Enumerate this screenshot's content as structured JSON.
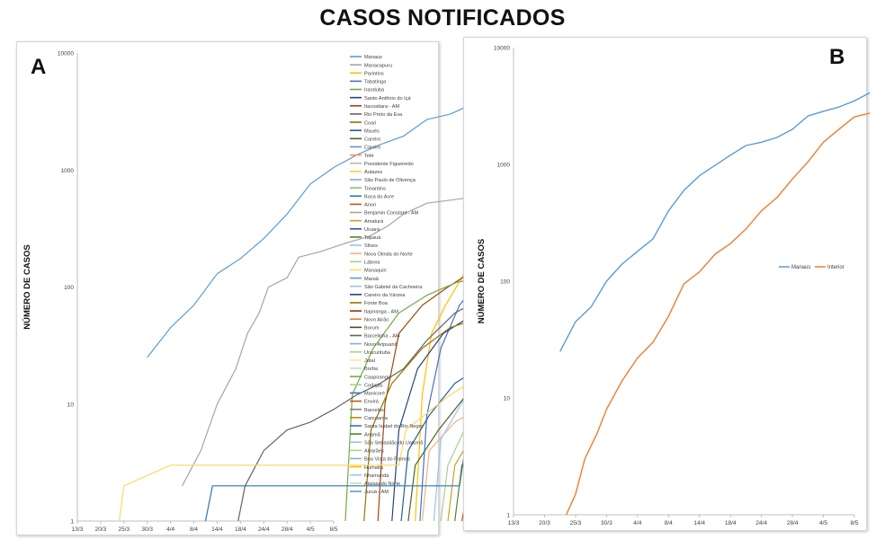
{
  "title": "CASOS NOTIFICADOS",
  "chart_data": [
    {
      "panel": "A",
      "type": "line",
      "ylabel": "NÚMERO DE CASOS",
      "yscale": "log",
      "ylim": [
        1,
        10000
      ],
      "yticks": [
        "1",
        "10",
        "100",
        "1000",
        "10000"
      ],
      "xticks": [
        "13/3",
        "20/3",
        "25/3",
        "30/3",
        "4/4",
        "8/4",
        "14/4",
        "18/4",
        "24/4",
        "28/4",
        "4/5",
        "8/5"
      ],
      "legend_position": "right",
      "series": [
        {
          "name": "Manaus",
          "color": "#5b9bd5",
          "values": [
            [
              3,
              25
            ],
            [
              4,
              45
            ],
            [
              5,
              70
            ],
            [
              6,
              130
            ],
            [
              7,
              175
            ],
            [
              8,
              260
            ],
            [
              9,
              420
            ],
            [
              10,
              760
            ],
            [
              11,
              1050
            ],
            [
              12,
              1350
            ],
            [
              13,
              1650
            ],
            [
              14,
              1950
            ],
            [
              15,
              2700
            ],
            [
              16,
              3000
            ],
            [
              17,
              3700
            ],
            [
              17.9,
              4800
            ]
          ]
        },
        {
          "name": "Manacapuru",
          "color": "#a5a5a5",
          "values": [
            [
              4.5,
              2
            ],
            [
              5.3,
              4
            ],
            [
              6,
              10
            ],
            [
              6.8,
              20
            ],
            [
              7.3,
              40
            ],
            [
              7.8,
              60
            ],
            [
              8.2,
              100
            ],
            [
              9,
              120
            ],
            [
              9.5,
              180
            ],
            [
              10.4,
              200
            ],
            [
              11.6,
              240
            ],
            [
              12.5,
              270
            ],
            [
              13.3,
              330
            ],
            [
              14,
              420
            ],
            [
              15,
              520
            ],
            [
              17.9,
              620
            ]
          ]
        },
        {
          "name": "Parintins",
          "color": "#ffc000",
          "values": [
            [
              14.5,
              1
            ],
            [
              14.8,
              12
            ],
            [
              15.2,
              40
            ],
            [
              15.8,
              70
            ],
            [
              16.5,
              120
            ],
            [
              17,
              180
            ],
            [
              17.5,
              230
            ],
            [
              17.9,
              270
            ]
          ]
        },
        {
          "name": "Tabatinga",
          "color": "#4472c4",
          "values": [
            [
              14.7,
              1
            ],
            [
              15,
              8
            ],
            [
              15.6,
              30
            ],
            [
              16.4,
              70
            ],
            [
              17.2,
              110
            ],
            [
              17.9,
              150
            ]
          ]
        },
        {
          "name": "Benjamin Constant - AM",
          "color": "#9e480e",
          "values": [
            [
              12.9,
              1
            ],
            [
              13.2,
              10
            ],
            [
              13.8,
              40
            ],
            [
              14.8,
              70
            ],
            [
              15.9,
              100
            ],
            [
              16.8,
              130
            ],
            [
              17.9,
              145
            ]
          ]
        },
        {
          "name": "Iranduba",
          "color": "#70ad47",
          "values": [
            [
              11.5,
              1
            ],
            [
              11.8,
              12
            ],
            [
              12.7,
              30
            ],
            [
              13.8,
              60
            ],
            [
              15,
              85
            ],
            [
              16.3,
              110
            ],
            [
              17.9,
              125
            ]
          ]
        },
        {
          "name": "Coari",
          "color": "#264478",
          "values": [
            [
              13.5,
              1
            ],
            [
              13.8,
              6
            ],
            [
              14.6,
              20
            ],
            [
              15.7,
              40
            ],
            [
              16.8,
              55
            ],
            [
              17.9,
              70
            ]
          ]
        },
        {
          "name": "Maués",
          "color": "#636363",
          "values": [
            [
              6.9,
              1
            ],
            [
              7.2,
              2
            ],
            [
              8,
              4
            ],
            [
              9,
              6
            ],
            [
              10,
              7
            ],
            [
              11,
              9
            ],
            [
              12,
              12
            ],
            [
              13,
              15
            ],
            [
              14,
              20
            ],
            [
              15,
              35
            ],
            [
              16.2,
              60
            ],
            [
              17.9,
              90
            ]
          ]
        },
        {
          "name": "Itacoatiara - AM",
          "color": "#997300",
          "values": [
            [
              12.3,
              1
            ],
            [
              12.6,
              6
            ],
            [
              13.5,
              15
            ],
            [
              14.8,
              30
            ],
            [
              16,
              45
            ],
            [
              17.9,
              60
            ]
          ]
        },
        {
          "name": "Rio Preto da Eva",
          "color": "#255e91",
          "values": [
            [
              13.9,
              1
            ],
            [
              14.2,
              4
            ],
            [
              15.1,
              8
            ],
            [
              16.2,
              15
            ],
            [
              17.9,
              25
            ]
          ]
        },
        {
          "name": "Careiro",
          "color": "#43682b",
          "values": [
            [
              14.2,
              1
            ],
            [
              14.5,
              3
            ],
            [
              15.5,
              6
            ],
            [
              16.7,
              12
            ],
            [
              17.9,
              18
            ]
          ]
        },
        {
          "name": "Autazes",
          "color": "#f4b183",
          "values": [
            [
              14.8,
              1
            ],
            [
              15.1,
              4
            ],
            [
              16.2,
              7
            ],
            [
              17.9,
              11
            ]
          ]
        },
        {
          "name": "Humaitá",
          "color": "#ffd966",
          "values": [
            [
              1.8,
              1
            ],
            [
              2,
              2
            ],
            [
              4,
              3
            ],
            [
              6,
              3
            ],
            [
              8,
              3
            ],
            [
              10,
              3
            ],
            [
              12,
              3
            ],
            [
              13.8,
              3
            ],
            [
              14.1,
              6
            ],
            [
              16,
              12
            ],
            [
              17.9,
              20
            ]
          ]
        },
        {
          "name": "São Paulo de Olivença",
          "color": "#9dc3e6",
          "values": [
            [
              15.3,
              1
            ],
            [
              15.6,
              5
            ],
            [
              16.7,
              12
            ],
            [
              17.9,
              22
            ]
          ]
        },
        {
          "name": "Tonantins",
          "color": "#a9d18e",
          "values": [
            [
              15.6,
              1
            ],
            [
              15.9,
              3
            ],
            [
              16.9,
              8
            ],
            [
              17.9,
              14
            ]
          ]
        },
        {
          "name": "Tefé",
          "color": "#c9a227",
          "values": [
            [
              15.9,
              1
            ],
            [
              16.2,
              3
            ],
            [
              17.1,
              6
            ],
            [
              17.9,
              9
            ]
          ]
        },
        {
          "name": "Boca do Acre",
          "color": "#2e75b6",
          "values": [
            [
              5.5,
              1
            ],
            [
              5.8,
              2
            ],
            [
              8,
              2
            ],
            [
              12,
              2
            ],
            [
              14,
              2
            ],
            [
              16.4,
              2
            ],
            [
              16.7,
              5
            ],
            [
              17.9,
              8
            ]
          ]
        },
        {
          "name": "Novo Airão",
          "color": "#548235",
          "values": [
            [
              16.2,
              1
            ],
            [
              16.5,
              3
            ],
            [
              17.9,
              6
            ]
          ]
        },
        {
          "name": "Lábrea",
          "color": "#c55a11",
          "values": [
            [
              16.5,
              1
            ],
            [
              16.8,
              2
            ],
            [
              17.9,
              5
            ]
          ]
        }
      ]
    },
    {
      "panel": "B",
      "type": "line",
      "ylabel": "NÚMERO DE CASOS",
      "yscale": "log",
      "ylim": [
        1,
        10000
      ],
      "yticks": [
        "1",
        "10",
        "100",
        "1000",
        "10000"
      ],
      "xticks": [
        "13/3",
        "20/3",
        "25/3",
        "30/3",
        "4/4",
        "8/4",
        "14/4",
        "18/4",
        "24/4",
        "28/4",
        "4/5",
        "8/5"
      ],
      "legend_position": "center-right",
      "series": [
        {
          "name": "Manaus",
          "color": "#5b9bd5",
          "values": [
            [
              1.5,
              25
            ],
            [
              2,
              45
            ],
            [
              2.5,
              60
            ],
            [
              3,
              100
            ],
            [
              3.5,
              140
            ],
            [
              4,
              180
            ],
            [
              4.5,
              230
            ],
            [
              5,
              400
            ],
            [
              5.5,
              600
            ],
            [
              6,
              800
            ],
            [
              6.5,
              980
            ],
            [
              7,
              1200
            ],
            [
              7.5,
              1450
            ],
            [
              8,
              1550
            ],
            [
              8.5,
              1700
            ],
            [
              9,
              2000
            ],
            [
              9.5,
              2600
            ],
            [
              10,
              2850
            ],
            [
              10.5,
              3100
            ],
            [
              11,
              3500
            ],
            [
              11.5,
              4100
            ]
          ]
        },
        {
          "name": "Interior",
          "color": "#ed7d31",
          "values": [
            [
              1.7,
              1
            ],
            [
              2,
              1.5
            ],
            [
              2.3,
              3
            ],
            [
              2.7,
              5
            ],
            [
              3,
              8
            ],
            [
              3.5,
              14
            ],
            [
              4,
              22
            ],
            [
              4.5,
              30
            ],
            [
              5,
              50
            ],
            [
              5.5,
              95
            ],
            [
              6,
              120
            ],
            [
              6.5,
              170
            ],
            [
              7,
              210
            ],
            [
              7.5,
              280
            ],
            [
              8,
              400
            ],
            [
              8.5,
              520
            ],
            [
              9,
              750
            ],
            [
              9.5,
              1050
            ],
            [
              10,
              1550
            ],
            [
              10.5,
              2000
            ],
            [
              11,
              2550
            ],
            [
              11.5,
              2750
            ]
          ]
        }
      ]
    }
  ],
  "legend_a": [
    "Manaus",
    "Manacapuru",
    "Parintins",
    "Tabatinga",
    "Iranduba",
    "Santo Antônio do Içá",
    "Itacoatiara - AM",
    "Rio Preto da Eva",
    "Coari",
    "Maués",
    "Careiro",
    "Careiro",
    "Tefé",
    "Presidente Figueiredo",
    "Autazes",
    "São Paulo de Olivença",
    "Tonantins",
    "Boca do Acre",
    "Anori",
    "Benjamin Constant - AM",
    "Amaturá",
    "Uruará",
    "Tapauá",
    "Silves",
    "Nova Olinda do Norte",
    "Lábrea",
    "Manaquiri",
    "Maraã",
    "São Gabriel da Cachoeira",
    "Careiro da Várzea",
    "Fonte Boa",
    "Itapiranga - AM",
    "Novo Airão",
    "Borum",
    "Barcelinha - AM",
    "Novo Aripuanã",
    "Urucurituba",
    "Jutaí",
    "Borba",
    "Caapiranga",
    "Codajás",
    "Manicoré",
    "Envirá",
    "Barcelos",
    "Canutama",
    "Santa Isabel do Rio Negro",
    "Anamã",
    "São Sebastião do Uatumã",
    "Alvarães",
    "Boa Vista do Ramos",
    "Humaitá",
    "Nhamundá",
    "Atalaia do Norte",
    "Juruá - AM"
  ],
  "legend_a_colors": [
    "#5b9bd5",
    "#a5a5a5",
    "#ffc000",
    "#4472c4",
    "#70ad47",
    "#264478",
    "#9e480e",
    "#636363",
    "#997300",
    "#255e91",
    "#43682b",
    "#698ed0",
    "#f1975a",
    "#b7b7b7",
    "#ffcd33",
    "#7cafdd",
    "#8cc168",
    "#2e75b6",
    "#c55a11",
    "#a5a5a5",
    "#c9a227",
    "#2f5597",
    "#548235",
    "#9dc3e6",
    "#f4b183",
    "#a9d18e",
    "#ffd966",
    "#5b9bd5",
    "#9dc3e6",
    "#264478",
    "#997300",
    "#843c0c",
    "#ed7d31",
    "#385723",
    "#636363",
    "#8faadc",
    "#a9d18e",
    "#ffe699",
    "#c5e0b4",
    "#70ad47",
    "#a9d18e",
    "#4472c4",
    "#c55a11",
    "#7f7f7f",
    "#bf9000",
    "#2e75b6",
    "#548235",
    "#9dc3e6",
    "#a9d18e",
    "#8faadc",
    "#ffc000",
    "#9dc3e6",
    "#c5e0b4",
    "#5b9bd5"
  ]
}
